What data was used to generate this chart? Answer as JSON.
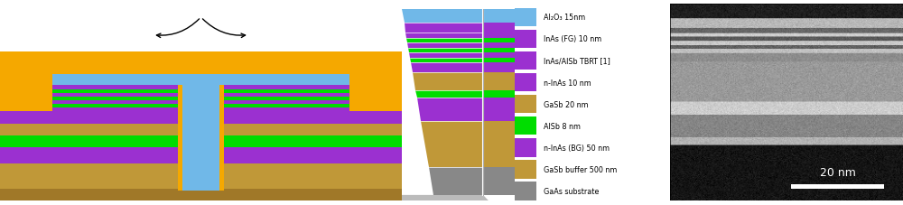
{
  "colors": {
    "orange": "#F5A800",
    "blue": "#70B8E8",
    "purple": "#9B30D0",
    "green": "#00DD00",
    "brown_dark": "#A07828",
    "brown_light": "#C09838",
    "gray": "#888888",
    "white": "#FFFFFF",
    "black": "#000000",
    "shadow": "#BBBBBB"
  },
  "layer_labels": [
    {
      "text": "Al₂O₃ 15nm",
      "color": "#70B8E8"
    },
    {
      "text": "InAs (FG) 10 nm",
      "color": "#9B30D0"
    },
    {
      "text": "InAs/AlSb TBRT [1]",
      "color": "#9B30D0"
    },
    {
      "text": "n-InAs 10 nm",
      "color": "#9B30D0"
    },
    {
      "text": "GaSb 20 nm",
      "color": "#C09838"
    },
    {
      "text": "AlSb 8 nm",
      "color": "#00DD00"
    },
    {
      "text": "n-InAs (BG) 50 nm",
      "color": "#9B30D0"
    },
    {
      "text": "GaSb buffer 500 nm",
      "color": "#C09838"
    },
    {
      "text": "GaAs substrate",
      "color": "#888888"
    }
  ],
  "scalebar_text": "20 nm",
  "mid_layers": [
    {
      "color": "#70B8E8",
      "th": 1.5
    },
    {
      "color": "#9B30D0",
      "th": 1.0
    },
    {
      "color": "#9B30D0",
      "th": 0.6
    },
    {
      "color": "#00DD00",
      "th": 0.5
    },
    {
      "color": "#9B30D0",
      "th": 0.6
    },
    {
      "color": "#00DD00",
      "th": 0.5
    },
    {
      "color": "#9B30D0",
      "th": 0.6
    },
    {
      "color": "#00DD00",
      "th": 0.5
    },
    {
      "color": "#9B30D0",
      "th": 1.0
    },
    {
      "color": "#C09838",
      "th": 2.0
    },
    {
      "color": "#00DD00",
      "th": 0.8
    },
    {
      "color": "#9B30D0",
      "th": 2.5
    },
    {
      "color": "#C09838",
      "th": 5.0
    },
    {
      "color": "#888888",
      "th": 3.0
    }
  ]
}
